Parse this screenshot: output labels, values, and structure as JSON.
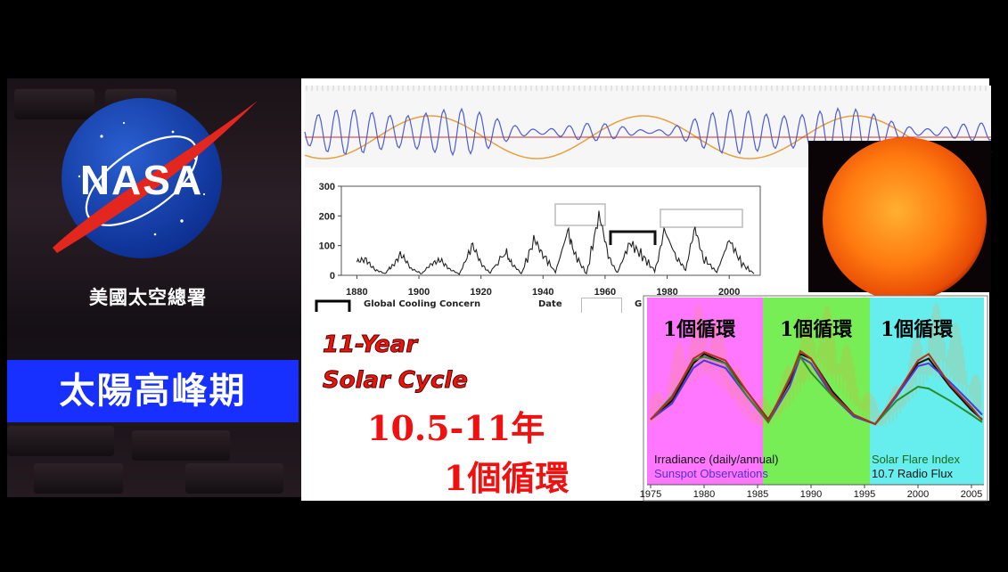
{
  "agency": {
    "logo_text": "NASA",
    "name": "美國太空總署"
  },
  "topic_title": "太陽高峰期",
  "captions": {
    "en_line1": "11-Year",
    "en_line2": "Solar Cycle",
    "cn_line1": "10.5-11年",
    "cn_line2": "1個循環"
  },
  "sunspot_chart": {
    "x_ticks": [
      "1880",
      "1900",
      "1920",
      "1940",
      "1960",
      "1980",
      "2000"
    ],
    "y_ticks": [
      "0",
      "100",
      "200",
      "300"
    ],
    "legend_items": [
      "Global Cooling Concern",
      "Date",
      "G"
    ]
  },
  "colors": {
    "topic_band": "#1730ff",
    "caption_red": "#e8150c",
    "phase_magenta": "#ff66ff",
    "phase_green": "#66ee55",
    "phase_cyan": "#55eeee",
    "wave_blue": "#4a5cd8",
    "wave_orange": "#e8a040"
  },
  "chart_data": [
    {
      "type": "line",
      "title": "",
      "xlabel": "",
      "ylabel": "",
      "xlim": [
        1875,
        2010
      ],
      "ylim": [
        0,
        300
      ],
      "series": [
        {
          "x": [
            1880,
            1883,
            1886,
            1889,
            1891,
            1894,
            1897,
            1901,
            1904,
            1907,
            1910,
            1913,
            1917,
            1920,
            1923,
            1928,
            1930,
            1933,
            1937,
            1940,
            1944,
            1948,
            1950,
            1954,
            1958,
            1961,
            1964,
            1968,
            1972,
            1976,
            1979,
            1983,
            1986,
            1989,
            1992,
            1996,
            2000,
            2004,
            2008
          ],
          "values": [
            40,
            60,
            20,
            5,
            30,
            78,
            25,
            5,
            35,
            62,
            20,
            3,
            95,
            40,
            10,
            78,
            35,
            5,
            115,
            70,
            10,
            150,
            75,
            5,
            200,
            60,
            10,
            110,
            65,
            15,
            155,
            60,
            14,
            158,
            55,
            10,
            120,
            40,
            5
          ]
        }
      ]
    },
    {
      "type": "line",
      "title": "",
      "x_ticks": [
        "1975",
        "1980",
        "1985",
        "1990",
        "1995",
        "2000",
        "2005"
      ],
      "xlim": [
        1975,
        2006
      ],
      "cycle_labels": [
        "1個循環",
        "1個循環",
        "1個循環"
      ],
      "legend": [
        "Irradiance (daily/annual)",
        "Sunspot Observations",
        "Solar Flare Index",
        "10.7 Radio Flux"
      ],
      "series": [
        {
          "name": "Irradiance (daily/annual)",
          "x": [
            1975,
            1977,
            1979,
            1980,
            1982,
            1984,
            1986,
            1988,
            1989,
            1990,
            1992,
            1994,
            1996,
            1998,
            2000,
            2001,
            2003,
            2005,
            2006
          ],
          "values": [
            0.25,
            0.45,
            0.85,
            0.95,
            0.85,
            0.55,
            0.25,
            0.65,
            0.95,
            0.9,
            0.55,
            0.3,
            0.2,
            0.5,
            0.85,
            0.9,
            0.6,
            0.35,
            0.25
          ]
        },
        {
          "name": "Sunspot Observations",
          "x": [
            1975,
            1977,
            1979,
            1980,
            1982,
            1984,
            1986,
            1988,
            1989,
            1990,
            1992,
            1994,
            1996,
            1998,
            2000,
            2001,
            2003,
            2005,
            2006
          ],
          "values": [
            0.25,
            0.42,
            0.8,
            0.88,
            0.8,
            0.5,
            0.22,
            0.6,
            0.92,
            0.85,
            0.5,
            0.28,
            0.2,
            0.5,
            0.82,
            0.85,
            0.65,
            0.42,
            0.3
          ]
        },
        {
          "name": "Solar Flare Index",
          "x": [
            1975,
            1977,
            1979,
            1980,
            1982,
            1984,
            1986,
            1988,
            1989,
            1990,
            1992,
            1994,
            1996,
            1998,
            2000,
            2001,
            2003,
            2005,
            2006
          ],
          "values": [
            0.25,
            0.5,
            0.88,
            0.92,
            0.85,
            0.5,
            0.22,
            0.7,
            0.92,
            0.75,
            0.5,
            0.3,
            0.2,
            0.45,
            0.6,
            0.58,
            0.45,
            0.3,
            0.22
          ]
        },
        {
          "name": "10.7 Radio Flux",
          "x": [
            1975,
            1977,
            1979,
            1980,
            1982,
            1984,
            1986,
            1988,
            1989,
            1990,
            1992,
            1994,
            1996,
            1998,
            2000,
            2001,
            2003,
            2005,
            2006
          ],
          "values": [
            0.25,
            0.48,
            0.9,
            0.97,
            0.88,
            0.55,
            0.24,
            0.68,
            0.98,
            0.9,
            0.52,
            0.3,
            0.2,
            0.52,
            0.88,
            0.95,
            0.62,
            0.38,
            0.24
          ]
        }
      ]
    }
  ]
}
